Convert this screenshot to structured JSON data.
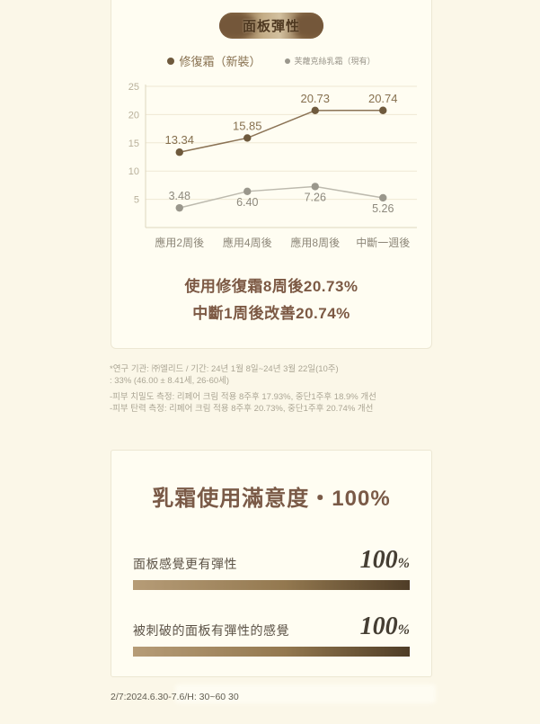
{
  "page": {
    "footer": "2/7:2024.6.30-7.6/H: 30~60 30"
  },
  "panel1": {
    "badge": "面板彈性",
    "legend": [
      {
        "label": "修復霜（新裝）",
        "color": "#6f5a3d"
      },
      {
        "label": "芙蘿克絲乳霜（現有）",
        "color": "#9a978c"
      }
    ],
    "summary_line1": "使用修復霜8周後20.73%",
    "summary_line2": "中斷1周後改善20.74%"
  },
  "chart_data": {
    "type": "line",
    "title": "面板彈性",
    "categories": [
      "應用2周後",
      "應用4周後",
      "應用8周後",
      "中斷一週後"
    ],
    "series": [
      {
        "name": "修復霜（新裝）",
        "values": [
          13.34,
          15.85,
          20.73,
          20.74
        ],
        "labels": [
          "13.34",
          "15.85",
          "20.73",
          "20.74"
        ],
        "label_positions": [
          "above",
          "above",
          "above",
          "above"
        ],
        "color": "#8b7355",
        "dot_color": "#6f5a3d",
        "label_color": "#86704f"
      },
      {
        "name": "芙蘿克絲乳霜（現有）",
        "values": [
          3.48,
          6.4,
          7.26,
          5.26
        ],
        "labels": [
          "3.48",
          "6.40",
          "7.26",
          "5.26"
        ],
        "label_positions": [
          "above",
          "below",
          "below",
          "below"
        ],
        "color": "#bdbaae",
        "dot_color": "#9a978c",
        "label_color": "#8d897d"
      }
    ],
    "ylim": [
      0,
      25
    ],
    "yticks": [
      5,
      10,
      15,
      20,
      25
    ],
    "grid": true,
    "legend_position": "top",
    "colors": {
      "grid": "#efe8d4",
      "axis": "#ddd6bf",
      "tick_label": "#b8b09a",
      "x_label": "#8d8779"
    }
  },
  "footnotes": [
    "*연구 기관: ㈜엘리드 / 기간: 24년 1월 8일~24년 3월 22일(10주)",
    ": 33% (46.00 ± 8.41세, 26-60세)",
    "-피부 치밀도 측정: 리페어 크림 적용 8주후 17.93%, 중단1주후 18.9% 개선",
    "-피부 탄력 측정: 리페어 크림 적용 8주후 20.73%, 중단1주후 20.74% 개선"
  ],
  "panel2": {
    "title": "乳霜使用滿意度・100%",
    "items": [
      {
        "label": "面板感覺更有彈性",
        "value": "100",
        "unit": "%",
        "percent": 100
      },
      {
        "label": "被刺破的面板有彈性的感覺",
        "value": "100",
        "unit": "%",
        "percent": 100
      }
    ],
    "bar_gradient": [
      "#b69c77",
      "#4f3d27"
    ]
  }
}
